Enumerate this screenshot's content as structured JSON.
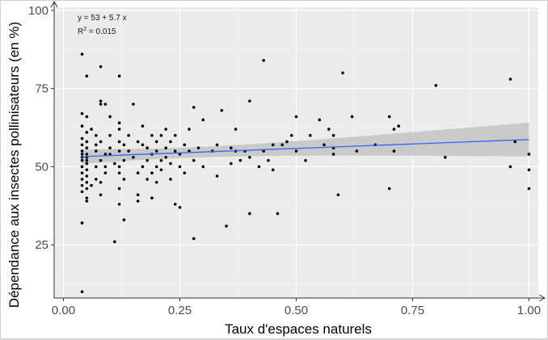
{
  "chart_data": {
    "type": "scatter",
    "xlabel": "Taux d'espaces naturels",
    "ylabel": "Dépendance aux insectes pollinisateurs (en %)",
    "xlim": [
      -0.02,
      1.02
    ],
    "ylim": [
      8,
      101
    ],
    "x_ticks": [
      0.0,
      0.25,
      0.5,
      0.75,
      1.0
    ],
    "x_tick_labels": [
      "0.00",
      "0.25",
      "0.50",
      "0.75",
      "1.00"
    ],
    "y_ticks": [
      25,
      50,
      75,
      100
    ],
    "y_tick_labels": [
      "25",
      "50",
      "75",
      "100"
    ],
    "grid": true,
    "background": "#ebebeb",
    "point_color": "#000000",
    "annotation": {
      "equation": "y = 53 + 5.7 x",
      "r2_prefix": "R",
      "r2_sup": "2",
      "r2_suffix": " = 0.015"
    },
    "regression": {
      "intercept": 53,
      "slope": 5.7,
      "x_range": [
        0.04,
        1.0
      ],
      "color": "#3366ff",
      "ci_color": "#bdbdbd"
    },
    "points": [
      [
        0.04,
        86
      ],
      [
        0.05,
        79
      ],
      [
        0.04,
        67
      ],
      [
        0.05,
        66
      ],
      [
        0.04,
        63
      ],
      [
        0.05,
        61
      ],
      [
        0.04,
        59
      ],
      [
        0.05,
        58
      ],
      [
        0.04,
        57
      ],
      [
        0.05,
        56
      ],
      [
        0.04,
        55
      ],
      [
        0.05,
        54
      ],
      [
        0.04,
        54
      ],
      [
        0.05,
        53
      ],
      [
        0.04,
        53
      ],
      [
        0.05,
        52
      ],
      [
        0.04,
        52
      ],
      [
        0.05,
        51
      ],
      [
        0.04,
        50
      ],
      [
        0.05,
        49
      ],
      [
        0.04,
        48
      ],
      [
        0.05,
        47
      ],
      [
        0.04,
        46
      ],
      [
        0.05,
        45
      ],
      [
        0.04,
        44
      ],
      [
        0.05,
        43
      ],
      [
        0.04,
        42
      ],
      [
        0.05,
        40
      ],
      [
        0.05,
        39
      ],
      [
        0.04,
        32
      ],
      [
        0.04,
        10
      ],
      [
        0.06,
        62
      ],
      [
        0.07,
        55
      ],
      [
        0.08,
        71
      ],
      [
        0.08,
        70
      ],
      [
        0.09,
        70
      ],
      [
        0.08,
        82
      ],
      [
        0.07,
        60
      ],
      [
        0.07,
        57
      ],
      [
        0.08,
        58
      ],
      [
        0.09,
        54
      ],
      [
        0.08,
        52
      ],
      [
        0.07,
        50
      ],
      [
        0.09,
        50
      ],
      [
        0.09,
        48
      ],
      [
        0.08,
        45
      ],
      [
        0.07,
        46
      ],
      [
        0.06,
        44
      ],
      [
        0.08,
        41
      ],
      [
        0.1,
        60
      ],
      [
        0.1,
        56
      ],
      [
        0.1,
        54
      ],
      [
        0.11,
        51
      ],
      [
        0.1,
        66
      ],
      [
        0.11,
        26
      ],
      [
        0.12,
        79
      ],
      [
        0.12,
        64
      ],
      [
        0.12,
        62
      ],
      [
        0.12,
        58
      ],
      [
        0.13,
        57
      ],
      [
        0.12,
        55
      ],
      [
        0.13,
        52
      ],
      [
        0.12,
        50
      ],
      [
        0.12,
        48
      ],
      [
        0.13,
        46
      ],
      [
        0.12,
        43
      ],
      [
        0.12,
        38
      ],
      [
        0.13,
        33
      ],
      [
        0.14,
        60
      ],
      [
        0.14,
        55
      ],
      [
        0.15,
        53
      ],
      [
        0.15,
        70
      ],
      [
        0.16,
        58
      ],
      [
        0.16,
        48
      ],
      [
        0.16,
        41
      ],
      [
        0.16,
        39
      ],
      [
        0.17,
        63
      ],
      [
        0.17,
        57
      ],
      [
        0.17,
        50
      ],
      [
        0.18,
        56
      ],
      [
        0.18,
        52
      ],
      [
        0.18,
        46
      ],
      [
        0.19,
        60
      ],
      [
        0.19,
        54
      ],
      [
        0.19,
        48
      ],
      [
        0.19,
        40
      ],
      [
        0.2,
        58
      ],
      [
        0.2,
        55
      ],
      [
        0.2,
        50
      ],
      [
        0.2,
        45
      ],
      [
        0.21,
        60
      ],
      [
        0.21,
        52
      ],
      [
        0.21,
        49
      ],
      [
        0.22,
        62
      ],
      [
        0.22,
        56
      ],
      [
        0.22,
        53
      ],
      [
        0.23,
        58
      ],
      [
        0.23,
        51
      ],
      [
        0.23,
        46
      ],
      [
        0.24,
        60
      ],
      [
        0.24,
        55
      ],
      [
        0.24,
        38
      ],
      [
        0.25,
        54
      ],
      [
        0.25,
        50
      ],
      [
        0.25,
        37
      ],
      [
        0.26,
        57
      ],
      [
        0.26,
        48
      ],
      [
        0.27,
        62
      ],
      [
        0.27,
        55
      ],
      [
        0.28,
        52
      ],
      [
        0.28,
        69
      ],
      [
        0.28,
        27
      ],
      [
        0.29,
        56
      ],
      [
        0.3,
        65
      ],
      [
        0.3,
        50
      ],
      [
        0.32,
        55
      ],
      [
        0.33,
        57
      ],
      [
        0.33,
        47
      ],
      [
        0.34,
        68
      ],
      [
        0.35,
        31
      ],
      [
        0.36,
        56
      ],
      [
        0.36,
        51
      ],
      [
        0.37,
        62
      ],
      [
        0.37,
        55
      ],
      [
        0.38,
        52
      ],
      [
        0.39,
        55
      ],
      [
        0.4,
        53
      ],
      [
        0.4,
        71
      ],
      [
        0.4,
        35
      ],
      [
        0.42,
        50
      ],
      [
        0.43,
        84
      ],
      [
        0.43,
        55
      ],
      [
        0.44,
        52
      ],
      [
        0.45,
        57
      ],
      [
        0.45,
        49
      ],
      [
        0.46,
        35
      ],
      [
        0.47,
        57
      ],
      [
        0.48,
        58
      ],
      [
        0.49,
        60
      ],
      [
        0.5,
        66
      ],
      [
        0.5,
        55
      ],
      [
        0.52,
        52
      ],
      [
        0.53,
        60
      ],
      [
        0.55,
        65
      ],
      [
        0.56,
        57
      ],
      [
        0.57,
        62
      ],
      [
        0.58,
        60
      ],
      [
        0.58,
        56
      ],
      [
        0.58,
        54
      ],
      [
        0.59,
        41
      ],
      [
        0.6,
        80
      ],
      [
        0.62,
        66
      ],
      [
        0.63,
        55
      ],
      [
        0.67,
        57
      ],
      [
        0.7,
        66
      ],
      [
        0.7,
        43
      ],
      [
        0.71,
        62
      ],
      [
        0.71,
        55
      ],
      [
        0.72,
        63
      ],
      [
        0.8,
        76
      ],
      [
        0.82,
        53
      ],
      [
        0.96,
        78
      ],
      [
        0.96,
        50
      ],
      [
        0.97,
        58
      ],
      [
        1.0,
        54
      ],
      [
        1.0,
        49
      ],
      [
        1.0,
        43
      ]
    ]
  }
}
